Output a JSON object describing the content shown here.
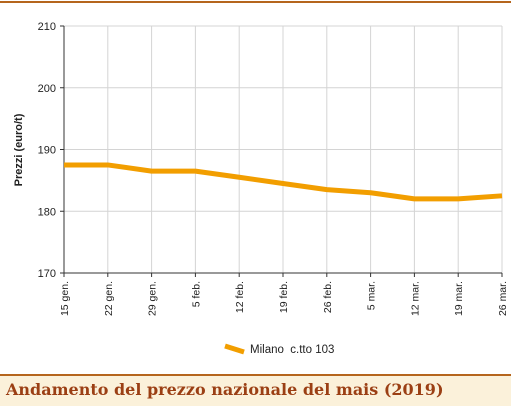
{
  "footer": {
    "title": "Andamento del prezzo nazionale del mais (2019)"
  },
  "chart_data": {
    "type": "line",
    "categories": [
      "15 gen.",
      "22 gen.",
      "29 gen.",
      "5 feb.",
      "12 feb.",
      "19 feb.",
      "26 feb.",
      "5 mar.",
      "12 mar.",
      "19 mar.",
      "26 mar."
    ],
    "series": [
      {
        "name": "Milano  c.tto 103",
        "values": [
          187.5,
          187.5,
          186.5,
          186.5,
          185.5,
          184.5,
          183.5,
          183,
          182,
          182,
          182.5
        ],
        "color": "#f29e00"
      }
    ],
    "xlabel": "",
    "ylabel": "Prezzi (euro/t)",
    "ylim": [
      170,
      210
    ],
    "yticks": [
      "170",
      "180",
      "190",
      "200",
      "210"
    ],
    "grid": true,
    "legend": "bottom-center"
  }
}
